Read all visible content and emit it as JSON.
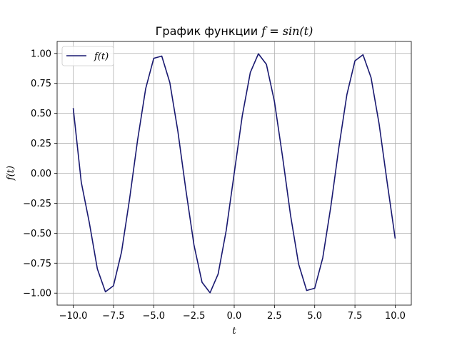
{
  "chart_data": {
    "type": "line",
    "title": "График функции f = sin(t)",
    "title_text": "График функции ",
    "title_math": "f = sin(t)",
    "xlabel": "t",
    "ylabel": "f(t)",
    "xlim": [
      -11,
      11
    ],
    "ylim": [
      -1.1,
      1.1
    ],
    "grid": true,
    "legend_position": "top-left",
    "x_ticks": [
      -10,
      -7.5,
      -5,
      -2.5,
      0,
      2.5,
      5,
      7.5,
      10
    ],
    "x_tick_labels": [
      "−10.0",
      "−7.5",
      "−5.0",
      "−2.5",
      "0.0",
      "2.5",
      "5.0",
      "7.5",
      "10.0"
    ],
    "y_ticks": [
      -1,
      -0.75,
      -0.5,
      -0.25,
      0,
      0.25,
      0.5,
      0.75,
      1
    ],
    "y_tick_labels": [
      "−1.00",
      "−0.75",
      "−0.50",
      "−0.25",
      "0.00",
      "0.25",
      "0.50",
      "0.75",
      "1.00"
    ],
    "series": [
      {
        "name": "f(t)",
        "color": "#191970",
        "x": [
          -10,
          -9.5,
          -9,
          -8.5,
          -8,
          -7.5,
          -7,
          -6.5,
          -6,
          -5.5,
          -5,
          -4.5,
          -4,
          -3.5,
          -3,
          -2.5,
          -2,
          -1.5,
          -1,
          -0.5,
          0,
          0.5,
          1,
          1.5,
          2,
          2.5,
          3,
          3.5,
          4,
          4.5,
          5,
          5.5,
          6,
          6.5,
          7,
          7.5,
          8,
          8.5,
          9,
          9.5,
          10
        ],
        "y": [
          0.544,
          -0.075,
          -0.412,
          -0.798,
          -0.989,
          -0.938,
          -0.657,
          -0.215,
          0.279,
          0.706,
          0.959,
          0.978,
          0.757,
          0.351,
          -0.141,
          -0.598,
          -0.909,
          -0.997,
          -0.841,
          -0.479,
          0.0,
          0.479,
          0.841,
          0.997,
          0.909,
          0.598,
          0.141,
          -0.351,
          -0.757,
          -0.978,
          -0.959,
          -0.706,
          -0.279,
          0.215,
          0.657,
          0.938,
          0.989,
          0.798,
          0.412,
          -0.075,
          -0.544
        ]
      }
    ]
  }
}
